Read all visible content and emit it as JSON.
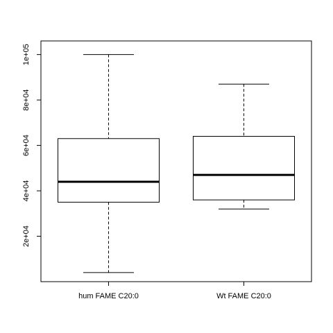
{
  "chart_data": {
    "type": "boxplot",
    "title": "",
    "xlabel": "",
    "ylabel": "",
    "ylim": [
      0,
      106000
    ],
    "yticks": [
      {
        "value": 20000,
        "label": "2e+04"
      },
      {
        "value": 40000,
        "label": "4e+04"
      },
      {
        "value": 60000,
        "label": "6e+04"
      },
      {
        "value": 80000,
        "label": "8e+04"
      },
      {
        "value": 100000,
        "label": "1e+05"
      }
    ],
    "categories": [
      "hum FAME C20:0",
      "Wt FAME C20:0"
    ],
    "boxes": [
      {
        "min": 4000,
        "q1": 35000,
        "median": 44000,
        "q3": 63000,
        "max": 100000
      },
      {
        "min": 32000,
        "q1": 36000,
        "median": 47000,
        "q3": 64000,
        "max": 87000
      }
    ],
    "grid": false,
    "legend": "none",
    "colors": {
      "box_fill": "#ffffff",
      "stroke": "#000000"
    }
  }
}
